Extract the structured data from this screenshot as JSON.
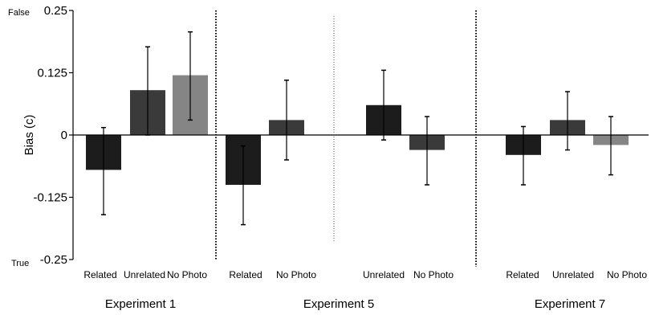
{
  "chart_data": {
    "type": "bar",
    "ylabel": "Bias (c)",
    "ylim": [
      -0.25,
      0.25
    ],
    "yticks": [
      0.25,
      0.125,
      0,
      -0.125,
      -0.25
    ],
    "ytick_labels": [
      "0.25",
      "0.125",
      "0",
      "-0.125",
      "-0.25"
    ],
    "y_annotations": {
      "top": "False",
      "bottom": "True"
    },
    "grid": false,
    "groups": [
      {
        "name": "Experiment 1",
        "bars": [
          {
            "category": "Related",
            "value": -0.07,
            "err_low": -0.16,
            "err_high": 0.015,
            "color": "#1c1c1c"
          },
          {
            "category": "Unrelated",
            "value": 0.09,
            "err_low": 0.0,
            "err_high": 0.177,
            "color": "#3a3a3a"
          },
          {
            "category": "No Photo",
            "value": 0.12,
            "err_low": 0.03,
            "err_high": 0.207,
            "color": "#858585"
          }
        ]
      },
      {
        "name": "Experiment 5",
        "bars": [
          {
            "category": "Related",
            "value": -0.1,
            "err_low": -0.18,
            "err_high": -0.022,
            "color": "#1c1c1c"
          },
          {
            "category": "No Photo",
            "value": 0.03,
            "err_low": -0.05,
            "err_high": 0.11,
            "color": "#3a3a3a"
          },
          {
            "category": "Unrelated",
            "value": 0.06,
            "err_low": -0.01,
            "err_high": 0.13,
            "color": "#1c1c1c"
          },
          {
            "category": "No Photo",
            "value": -0.03,
            "err_low": -0.1,
            "err_high": 0.037,
            "color": "#3a3a3a"
          }
        ]
      },
      {
        "name": "Experiment 7",
        "bars": [
          {
            "category": "Related",
            "value": -0.04,
            "err_low": -0.1,
            "err_high": 0.017,
            "color": "#1c1c1c"
          },
          {
            "category": "Unrelated",
            "value": 0.03,
            "err_low": -0.03,
            "err_high": 0.087,
            "color": "#3a3a3a"
          },
          {
            "category": "No Photo",
            "value": -0.02,
            "err_low": -0.08,
            "err_high": 0.037,
            "color": "#858585"
          }
        ]
      }
    ]
  }
}
